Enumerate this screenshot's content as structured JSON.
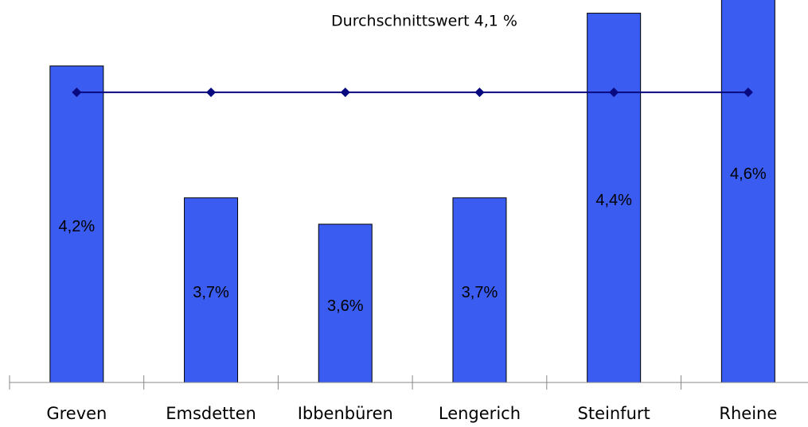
{
  "chart_data": {
    "type": "bar",
    "annotation": "Durchschnittswert 4,1 %",
    "categories": [
      "Greven",
      "Emsdetten",
      "Ibbenbüren",
      "Lengerich",
      "Steinfurt",
      "Rheine"
    ],
    "values": [
      4.2,
      3.7,
      3.6,
      3.7,
      4.4,
      4.6
    ],
    "value_labels": [
      "4,2%",
      "3,7%",
      "3,6%",
      "3,7%",
      "4,4%",
      "4,6%"
    ],
    "color": "#3a5cf0",
    "line": {
      "type": "line",
      "values": [
        4.1,
        4.1,
        4.1,
        4.1,
        4.1,
        4.1
      ],
      "color": "#0a0a80"
    },
    "ylim": [
      3.0,
      4.45
    ]
  }
}
